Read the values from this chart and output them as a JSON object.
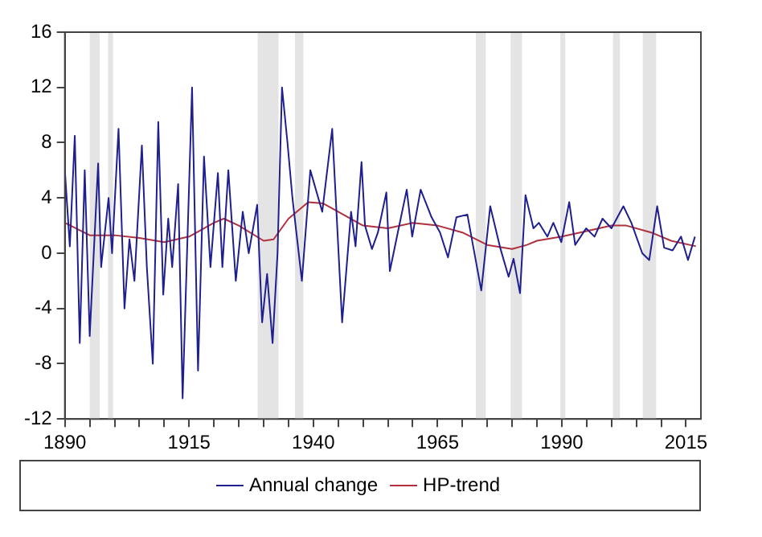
{
  "chart_data": {
    "type": "line",
    "xlim": [
      1890,
      2018
    ],
    "ylim": [
      -12,
      16
    ],
    "xticks": [
      1890,
      {
        "value": 1895,
        "label": null
      },
      {
        "value": 1900,
        "label": null
      },
      {
        "value": 1905,
        "label": null
      },
      {
        "value": 1910,
        "label": null
      },
      1915,
      {
        "value": 1920,
        "label": null
      },
      {
        "value": 1925,
        "label": null
      },
      {
        "value": 1930,
        "label": null
      },
      {
        "value": 1935,
        "label": null
      },
      1940,
      {
        "value": 1945,
        "label": null
      },
      {
        "value": 1950,
        "label": null
      },
      {
        "value": 1955,
        "label": null
      },
      {
        "value": 1960,
        "label": null
      },
      1965,
      {
        "value": 1970,
        "label": null
      },
      {
        "value": 1975,
        "label": null
      },
      {
        "value": 1980,
        "label": null
      },
      {
        "value": 1985,
        "label": null
      },
      1990,
      {
        "value": 1995,
        "label": null
      },
      {
        "value": 2000,
        "label": null
      },
      {
        "value": 2005,
        "label": null
      },
      {
        "value": 2010,
        "label": null
      },
      2015
    ],
    "yticks": [
      -12,
      -8,
      -4,
      0,
      4,
      8,
      12,
      16
    ],
    "grid": false,
    "legend": "bottom",
    "bands": [
      {
        "axis": "x",
        "from": 1895,
        "to": 1897,
        "color": "#e4e4e4"
      },
      {
        "axis": "x",
        "from": 1898.7,
        "to": 1899.7,
        "color": "#e4e4e4"
      },
      {
        "axis": "x",
        "from": 1928.8,
        "to": 1933,
        "color": "#e4e4e4"
      },
      {
        "axis": "x",
        "from": 1936.3,
        "to": 1938,
        "color": "#e4e4e4"
      },
      {
        "axis": "x",
        "from": 1972.7,
        "to": 1974.7,
        "color": "#e4e4e4"
      },
      {
        "axis": "x",
        "from": 1979.7,
        "to": 1982,
        "color": "#e4e4e4"
      },
      {
        "axis": "x",
        "from": 1989.7,
        "to": 1990.7,
        "color": "#e4e4e4"
      },
      {
        "axis": "x",
        "from": 2000.3,
        "to": 2001.7,
        "color": "#e4e4e4"
      },
      {
        "axis": "x",
        "from": 2006.3,
        "to": 2009,
        "color": "#e4e4e4"
      }
    ],
    "series": [
      {
        "name": "Annual change",
        "color": "#1f1f8f",
        "x": [
          1890,
          1891,
          1892,
          1893,
          1894,
          1895,
          1896.7,
          1897.3,
          1898.8,
          1899.5,
          1900.8,
          1902,
          1903,
          1904,
          1905.5,
          1906.5,
          1907.7,
          1908.8,
          1909.8,
          1910.8,
          1911.6,
          1912.8,
          1913.7,
          1915.6,
          1916.8,
          1918,
          1919.3,
          1920.8,
          1921.7,
          1922.9,
          1924.4,
          1925.8,
          1927,
          1928.7,
          1929.7,
          1930.7,
          1931.8,
          1932.8,
          1933.7,
          1934.8,
          1935.8,
          1937.7,
          1939.4,
          1941.8,
          1943.8,
          1945.8,
          1947.6,
          1948.5,
          1949.7,
          1950.4,
          1951.8,
          1953,
          1954.7,
          1955.4,
          1957,
          1958.8,
          1959.9,
          1961.6,
          1963.8,
          1965.5,
          1967.1,
          1968.8,
          1971,
          1973.8,
          1975.6,
          1977.6,
          1979.3,
          1980.3,
          1981.6,
          1982.7,
          1984.3,
          1985.4,
          1987.1,
          1988.3,
          1989.9,
          1991.5,
          1992.7,
          1994.9,
          1996.6,
          1998.2,
          2000,
          2002.4,
          2004,
          2006.2,
          2007.6,
          2009.2,
          2010.6,
          2012.3,
          2014,
          2015.4,
          2016.8
        ],
        "values": [
          6,
          0.5,
          8.5,
          -6.5,
          6,
          -6,
          6.5,
          -1,
          4,
          0,
          9,
          -4,
          1,
          -2,
          7.8,
          -1,
          -8,
          9.5,
          -3,
          2.5,
          -1,
          5,
          -10.5,
          12,
          -8.5,
          7,
          -1,
          5.8,
          -1,
          6,
          -2,
          3,
          0,
          3.5,
          -5,
          -1.5,
          -6.5,
          0,
          12,
          8,
          4,
          -2,
          6,
          3,
          9,
          -5,
          3,
          0.5,
          6.6,
          2,
          0.3,
          1.5,
          4.4,
          -1.3,
          1.5,
          4.6,
          1.2,
          4.6,
          2.6,
          1.5,
          -0.3,
          2.6,
          2.8,
          -2.7,
          3.4,
          0.4,
          -1.7,
          -0.4,
          -2.9,
          4.2,
          1.8,
          2.2,
          1.2,
          2.2,
          0.8,
          3.7,
          0.6,
          1.8,
          1.2,
          2.5,
          1.8,
          3.4,
          2.2,
          0,
          -0.5,
          3.4,
          0.4,
          0.2,
          1.2,
          -0.5,
          1.2
        ]
      },
      {
        "name": "HP-trend",
        "color": "#b0303c",
        "x": [
          1890,
          1895,
          1900,
          1905,
          1910,
          1915,
          1920,
          1922,
          1925,
          1930,
          1932,
          1935,
          1939,
          1942,
          1945,
          1950,
          1955,
          1960,
          1965,
          1970,
          1975,
          1980,
          1983,
          1985,
          1990,
          1995,
          2000,
          2003,
          2008,
          2012,
          2017
        ],
        "values": [
          2.2,
          1.3,
          1.3,
          1.1,
          0.8,
          1.2,
          2.2,
          2.5,
          2,
          0.9,
          1,
          2.5,
          3.7,
          3.6,
          3,
          2,
          1.8,
          2.2,
          2,
          1.5,
          0.6,
          0.3,
          0.6,
          0.9,
          1.2,
          1.6,
          2,
          2,
          1.5,
          0.9,
          0.5
        ]
      }
    ]
  }
}
